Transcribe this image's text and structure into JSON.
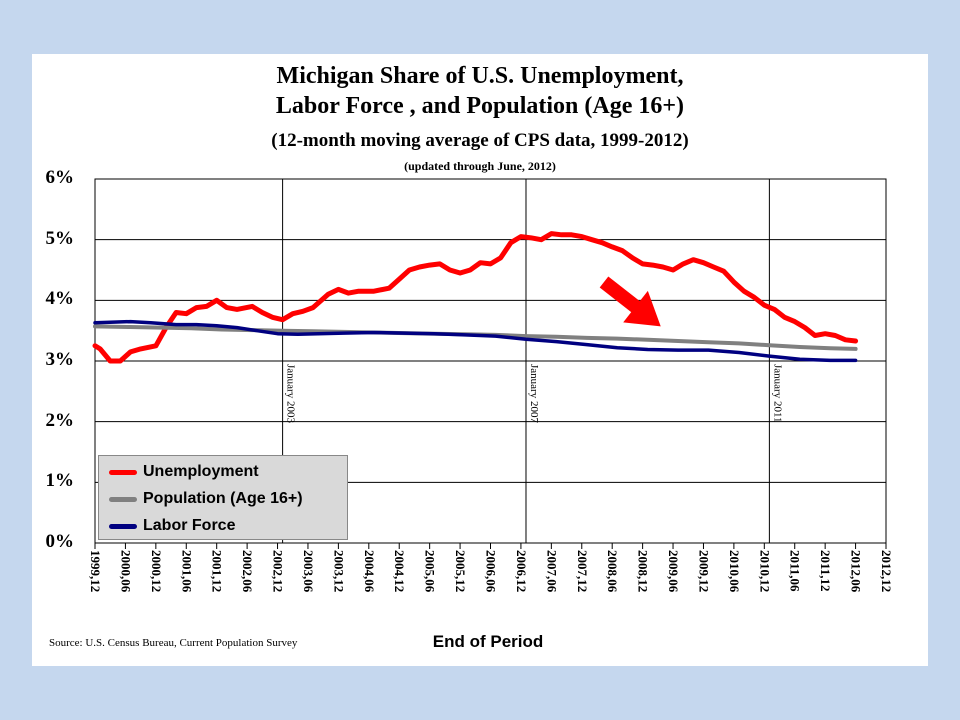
{
  "chart_data": {
    "type": "line",
    "title": "Michigan Share of U.S. Unemployment,",
    "title_line2": "Labor Force , and Population (Age 16+)",
    "subtitle": "(12-month moving average of CPS data, 1999-2012)",
    "note": "(updated through June, 2012)",
    "xlabel": "End of Period",
    "ylabel": "",
    "ylim": [
      0,
      6
    ],
    "y_tick_labels": [
      "6%",
      "5%",
      "4%",
      "3%",
      "2%",
      "1%",
      "0%"
    ],
    "x_tick_labels": [
      "1999,12",
      "2000,06",
      "2000,12",
      "2001,06",
      "2001,12",
      "2002,06",
      "2002,12",
      "2003,06",
      "2003,12",
      "2004,06",
      "2004,12",
      "2005,06",
      "2005,12",
      "2006,06",
      "2006,12",
      "2007,06",
      "2007,12",
      "2008,06",
      "2008,12",
      "2009,06",
      "2009,12",
      "2010,06",
      "2010,12",
      "2011,06",
      "2011,12",
      "2012,06",
      "2012,12"
    ],
    "vertical_markers": [
      {
        "label": "January 2003",
        "x": 2003.0
      },
      {
        "label": "January 2007",
        "x": 2007.0
      },
      {
        "label": "January 2011",
        "x": 2011.0
      }
    ],
    "grid": true,
    "legend_position": "bottom-left",
    "series": [
      {
        "name": "Unemployment",
        "color": "#ff0000",
        "points": [
          [
            1999.917,
            3.25
          ],
          [
            2000.0,
            3.2
          ],
          [
            2000.167,
            3.0
          ],
          [
            2000.333,
            3.0
          ],
          [
            2000.5,
            3.15
          ],
          [
            2000.667,
            3.2
          ],
          [
            2000.917,
            3.25
          ],
          [
            2001.083,
            3.55
          ],
          [
            2001.25,
            3.8
          ],
          [
            2001.417,
            3.78
          ],
          [
            2001.583,
            3.88
          ],
          [
            2001.75,
            3.9
          ],
          [
            2001.917,
            4.0
          ],
          [
            2002.083,
            3.88
          ],
          [
            2002.25,
            3.85
          ],
          [
            2002.5,
            3.9
          ],
          [
            2002.667,
            3.8
          ],
          [
            2002.833,
            3.72
          ],
          [
            2003.0,
            3.68
          ],
          [
            2003.167,
            3.78
          ],
          [
            2003.333,
            3.82
          ],
          [
            2003.5,
            3.88
          ],
          [
            2003.75,
            4.1
          ],
          [
            2003.917,
            4.18
          ],
          [
            2004.083,
            4.12
          ],
          [
            2004.25,
            4.15
          ],
          [
            2004.5,
            4.15
          ],
          [
            2004.75,
            4.2
          ],
          [
            2004.917,
            4.35
          ],
          [
            2005.083,
            4.5
          ],
          [
            2005.25,
            4.55
          ],
          [
            2005.417,
            4.58
          ],
          [
            2005.583,
            4.6
          ],
          [
            2005.75,
            4.5
          ],
          [
            2005.917,
            4.45
          ],
          [
            2006.083,
            4.5
          ],
          [
            2006.25,
            4.62
          ],
          [
            2006.417,
            4.6
          ],
          [
            2006.583,
            4.7
          ],
          [
            2006.75,
            4.95
          ],
          [
            2006.917,
            5.05
          ],
          [
            2007.083,
            5.03
          ],
          [
            2007.25,
            5.0
          ],
          [
            2007.417,
            5.1
          ],
          [
            2007.583,
            5.08
          ],
          [
            2007.75,
            5.08
          ],
          [
            2007.917,
            5.05
          ],
          [
            2008.083,
            5.0
          ],
          [
            2008.25,
            4.95
          ],
          [
            2008.417,
            4.88
          ],
          [
            2008.583,
            4.82
          ],
          [
            2008.75,
            4.7
          ],
          [
            2008.917,
            4.6
          ],
          [
            2009.083,
            4.58
          ],
          [
            2009.25,
            4.55
          ],
          [
            2009.417,
            4.5
          ],
          [
            2009.583,
            4.6
          ],
          [
            2009.75,
            4.67
          ],
          [
            2009.917,
            4.62
          ],
          [
            2010.083,
            4.55
          ],
          [
            2010.25,
            4.48
          ],
          [
            2010.417,
            4.3
          ],
          [
            2010.583,
            4.15
          ],
          [
            2010.75,
            4.05
          ],
          [
            2010.917,
            3.92
          ],
          [
            2011.083,
            3.85
          ],
          [
            2011.25,
            3.72
          ],
          [
            2011.417,
            3.65
          ],
          [
            2011.583,
            3.55
          ],
          [
            2011.75,
            3.42
          ],
          [
            2011.917,
            3.45
          ],
          [
            2012.083,
            3.42
          ],
          [
            2012.25,
            3.35
          ],
          [
            2012.417,
            3.33
          ]
        ]
      },
      {
        "name": "Population (Age 16+)",
        "color": "#808080",
        "points": [
          [
            1999.917,
            3.57
          ],
          [
            2000.5,
            3.56
          ],
          [
            2001.0,
            3.55
          ],
          [
            2001.5,
            3.54
          ],
          [
            2002.0,
            3.52
          ],
          [
            2002.5,
            3.51
          ],
          [
            2003.0,
            3.5
          ],
          [
            2003.5,
            3.49
          ],
          [
            2004.0,
            3.48
          ],
          [
            2004.5,
            3.47
          ],
          [
            2005.0,
            3.46
          ],
          [
            2005.5,
            3.45
          ],
          [
            2006.0,
            3.44
          ],
          [
            2006.5,
            3.43
          ],
          [
            2007.0,
            3.41
          ],
          [
            2007.5,
            3.4
          ],
          [
            2008.0,
            3.38
          ],
          [
            2008.5,
            3.37
          ],
          [
            2009.0,
            3.35
          ],
          [
            2009.5,
            3.33
          ],
          [
            2010.0,
            3.31
          ],
          [
            2010.5,
            3.29
          ],
          [
            2011.0,
            3.26
          ],
          [
            2011.5,
            3.23
          ],
          [
            2012.0,
            3.21
          ],
          [
            2012.417,
            3.2
          ]
        ]
      },
      {
        "name": "Labor Force",
        "color": "#000080",
        "points": [
          [
            1999.917,
            3.63
          ],
          [
            2000.167,
            3.64
          ],
          [
            2000.5,
            3.65
          ],
          [
            2000.833,
            3.63
          ],
          [
            2001.25,
            3.6
          ],
          [
            2001.583,
            3.6
          ],
          [
            2001.917,
            3.58
          ],
          [
            2002.25,
            3.55
          ],
          [
            2002.583,
            3.5
          ],
          [
            2002.917,
            3.45
          ],
          [
            2003.25,
            3.44
          ],
          [
            2003.583,
            3.45
          ],
          [
            2004.0,
            3.46
          ],
          [
            2004.5,
            3.47
          ],
          [
            2005.0,
            3.46
          ],
          [
            2005.5,
            3.45
          ],
          [
            2006.0,
            3.43
          ],
          [
            2006.5,
            3.41
          ],
          [
            2007.0,
            3.36
          ],
          [
            2007.5,
            3.32
          ],
          [
            2008.0,
            3.27
          ],
          [
            2008.5,
            3.22
          ],
          [
            2009.0,
            3.19
          ],
          [
            2009.5,
            3.18
          ],
          [
            2010.0,
            3.18
          ],
          [
            2010.5,
            3.14
          ],
          [
            2011.0,
            3.08
          ],
          [
            2011.5,
            3.03
          ],
          [
            2012.0,
            3.01
          ],
          [
            2012.417,
            3.01
          ]
        ]
      }
    ]
  }
}
